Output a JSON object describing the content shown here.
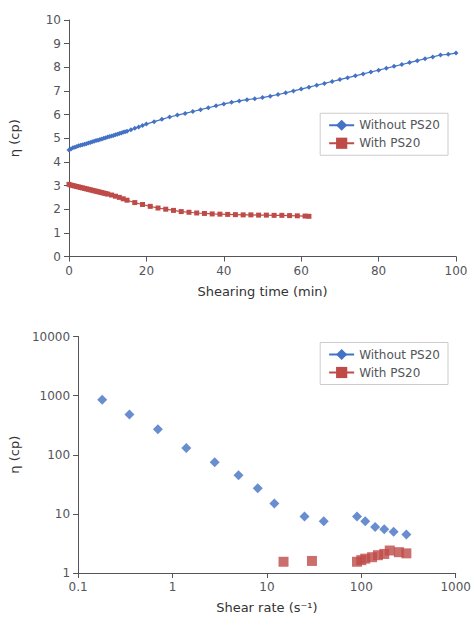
{
  "chart_data": [
    {
      "type": "line",
      "xlabel": "Shearing time (min)",
      "ylabel": "η (cp)",
      "xlim": [
        0,
        100
      ],
      "ylim": [
        0,
        10
      ],
      "xticks": [
        0,
        20,
        40,
        60,
        80,
        100
      ],
      "yticks": [
        0,
        1,
        2,
        3,
        4,
        5,
        6,
        7,
        8,
        9,
        10
      ],
      "grid": false,
      "legend": "center right",
      "series": [
        {
          "name": "Without PS20",
          "color": "#4472C4",
          "marker": "diamond",
          "x": [
            0.0,
            0.5,
            1.0,
            1.5,
            2.0,
            2.5,
            3.0,
            3.5,
            4.0,
            4.5,
            5.0,
            5.5,
            6.0,
            6.5,
            7.0,
            7.5,
            8.0,
            8.5,
            9.0,
            9.5,
            10.0,
            10.5,
            11.0,
            11.5,
            12.0,
            12.5,
            13.0,
            13.5,
            14.0,
            14.5,
            15.0,
            16.0,
            17.0,
            18.0,
            19.0,
            20.0,
            22.0,
            24.0,
            26.0,
            28.0,
            30.0,
            32.0,
            34.0,
            36.0,
            38.0,
            40.0,
            42.0,
            44.0,
            46.0,
            48.0,
            50.0,
            52.0,
            54.0,
            56.0,
            58.0,
            60.0,
            62.0,
            64.0,
            66.0,
            68.0,
            70.0,
            72.0,
            74.0,
            76.0,
            78.0,
            80.0,
            82.0,
            84.0,
            86.0,
            88.0,
            90.0,
            92.0,
            94.0,
            96.0,
            98.0,
            100.0
          ],
          "values": [
            4.5,
            4.55,
            4.6,
            4.62,
            4.65,
            4.68,
            4.7,
            4.72,
            4.75,
            4.77,
            4.8,
            4.82,
            4.85,
            4.87,
            4.9,
            4.92,
            4.95,
            4.97,
            5.0,
            5.02,
            5.05,
            5.07,
            5.1,
            5.12,
            5.15,
            5.17,
            5.2,
            5.22,
            5.25,
            5.27,
            5.3,
            5.36,
            5.42,
            5.48,
            5.54,
            5.6,
            5.7,
            5.8,
            5.9,
            5.98,
            6.05,
            6.13,
            6.21,
            6.29,
            6.37,
            6.45,
            6.52,
            6.58,
            6.63,
            6.67,
            6.72,
            6.78,
            6.85,
            6.92,
            7.0,
            7.08,
            7.16,
            7.24,
            7.32,
            7.4,
            7.48,
            7.56,
            7.64,
            7.72,
            7.8,
            7.88,
            7.96,
            8.04,
            8.12,
            8.2,
            8.28,
            8.36,
            8.44,
            8.52,
            8.55,
            8.6
          ]
        },
        {
          "name": "With PS20",
          "color": "#BE4B48",
          "marker": "square",
          "x": [
            0.0,
            0.5,
            1.0,
            1.5,
            2.0,
            2.5,
            3.0,
            3.5,
            4.0,
            4.5,
            5.0,
            5.5,
            6.0,
            6.5,
            7.0,
            7.5,
            8.0,
            8.5,
            9.0,
            9.5,
            10.0,
            11.0,
            12.0,
            13.0,
            14.0,
            15.0,
            17.0,
            19.0,
            21.0,
            23.0,
            25.0,
            27.0,
            29.0,
            31.0,
            33.0,
            35.0,
            37.0,
            39.0,
            41.0,
            43.0,
            45.0,
            47.0,
            49.0,
            51.0,
            53.0,
            55.0,
            57.0,
            59.0,
            61.0,
            62.0
          ],
          "values": [
            3.05,
            3.02,
            3.0,
            2.98,
            2.96,
            2.94,
            2.92,
            2.9,
            2.88,
            2.86,
            2.84,
            2.82,
            2.8,
            2.78,
            2.76,
            2.74,
            2.72,
            2.7,
            2.68,
            2.66,
            2.64,
            2.6,
            2.55,
            2.5,
            2.44,
            2.38,
            2.28,
            2.2,
            2.12,
            2.05,
            2.0,
            1.95,
            1.9,
            1.87,
            1.84,
            1.82,
            1.8,
            1.79,
            1.78,
            1.77,
            1.76,
            1.76,
            1.75,
            1.75,
            1.74,
            1.74,
            1.73,
            1.72,
            1.71,
            1.7
          ]
        }
      ]
    },
    {
      "type": "scatter",
      "xlabel": "Shear rate (s⁻¹)",
      "ylabel": "η (cp)",
      "log": true,
      "xlim": [
        0.1,
        1000
      ],
      "ylim": [
        1,
        10000
      ],
      "xticks": [
        0.1,
        1,
        10,
        100,
        1000
      ],
      "yticks": [
        1,
        10,
        100,
        1000,
        10000
      ],
      "grid": false,
      "legend": "upper right",
      "series": [
        {
          "name": "Without PS20",
          "color": "#4472C4",
          "marker": "diamond",
          "x": [
            0.18,
            0.35,
            0.7,
            1.4,
            2.8,
            5.0,
            8.0,
            12.0,
            25.0,
            40.0,
            90.0,
            110.0,
            140.0,
            175.0,
            220.0,
            300.0
          ],
          "values": [
            850,
            480,
            270,
            130,
            75,
            45,
            27,
            15,
            9.0,
            7.5,
            9.0,
            7.5,
            6.0,
            5.5,
            5.0,
            4.5
          ]
        },
        {
          "name": "With PS20",
          "color": "#BE4B48",
          "marker": "square",
          "x": [
            15.0,
            30.0,
            90.0,
            100.0,
            110.0,
            130.0,
            150.0,
            175.0,
            200.0,
            250.0,
            300.0
          ],
          "values": [
            1.55,
            1.6,
            1.55,
            1.65,
            1.75,
            1.85,
            2.0,
            2.1,
            2.4,
            2.25,
            2.15
          ]
        }
      ]
    }
  ]
}
